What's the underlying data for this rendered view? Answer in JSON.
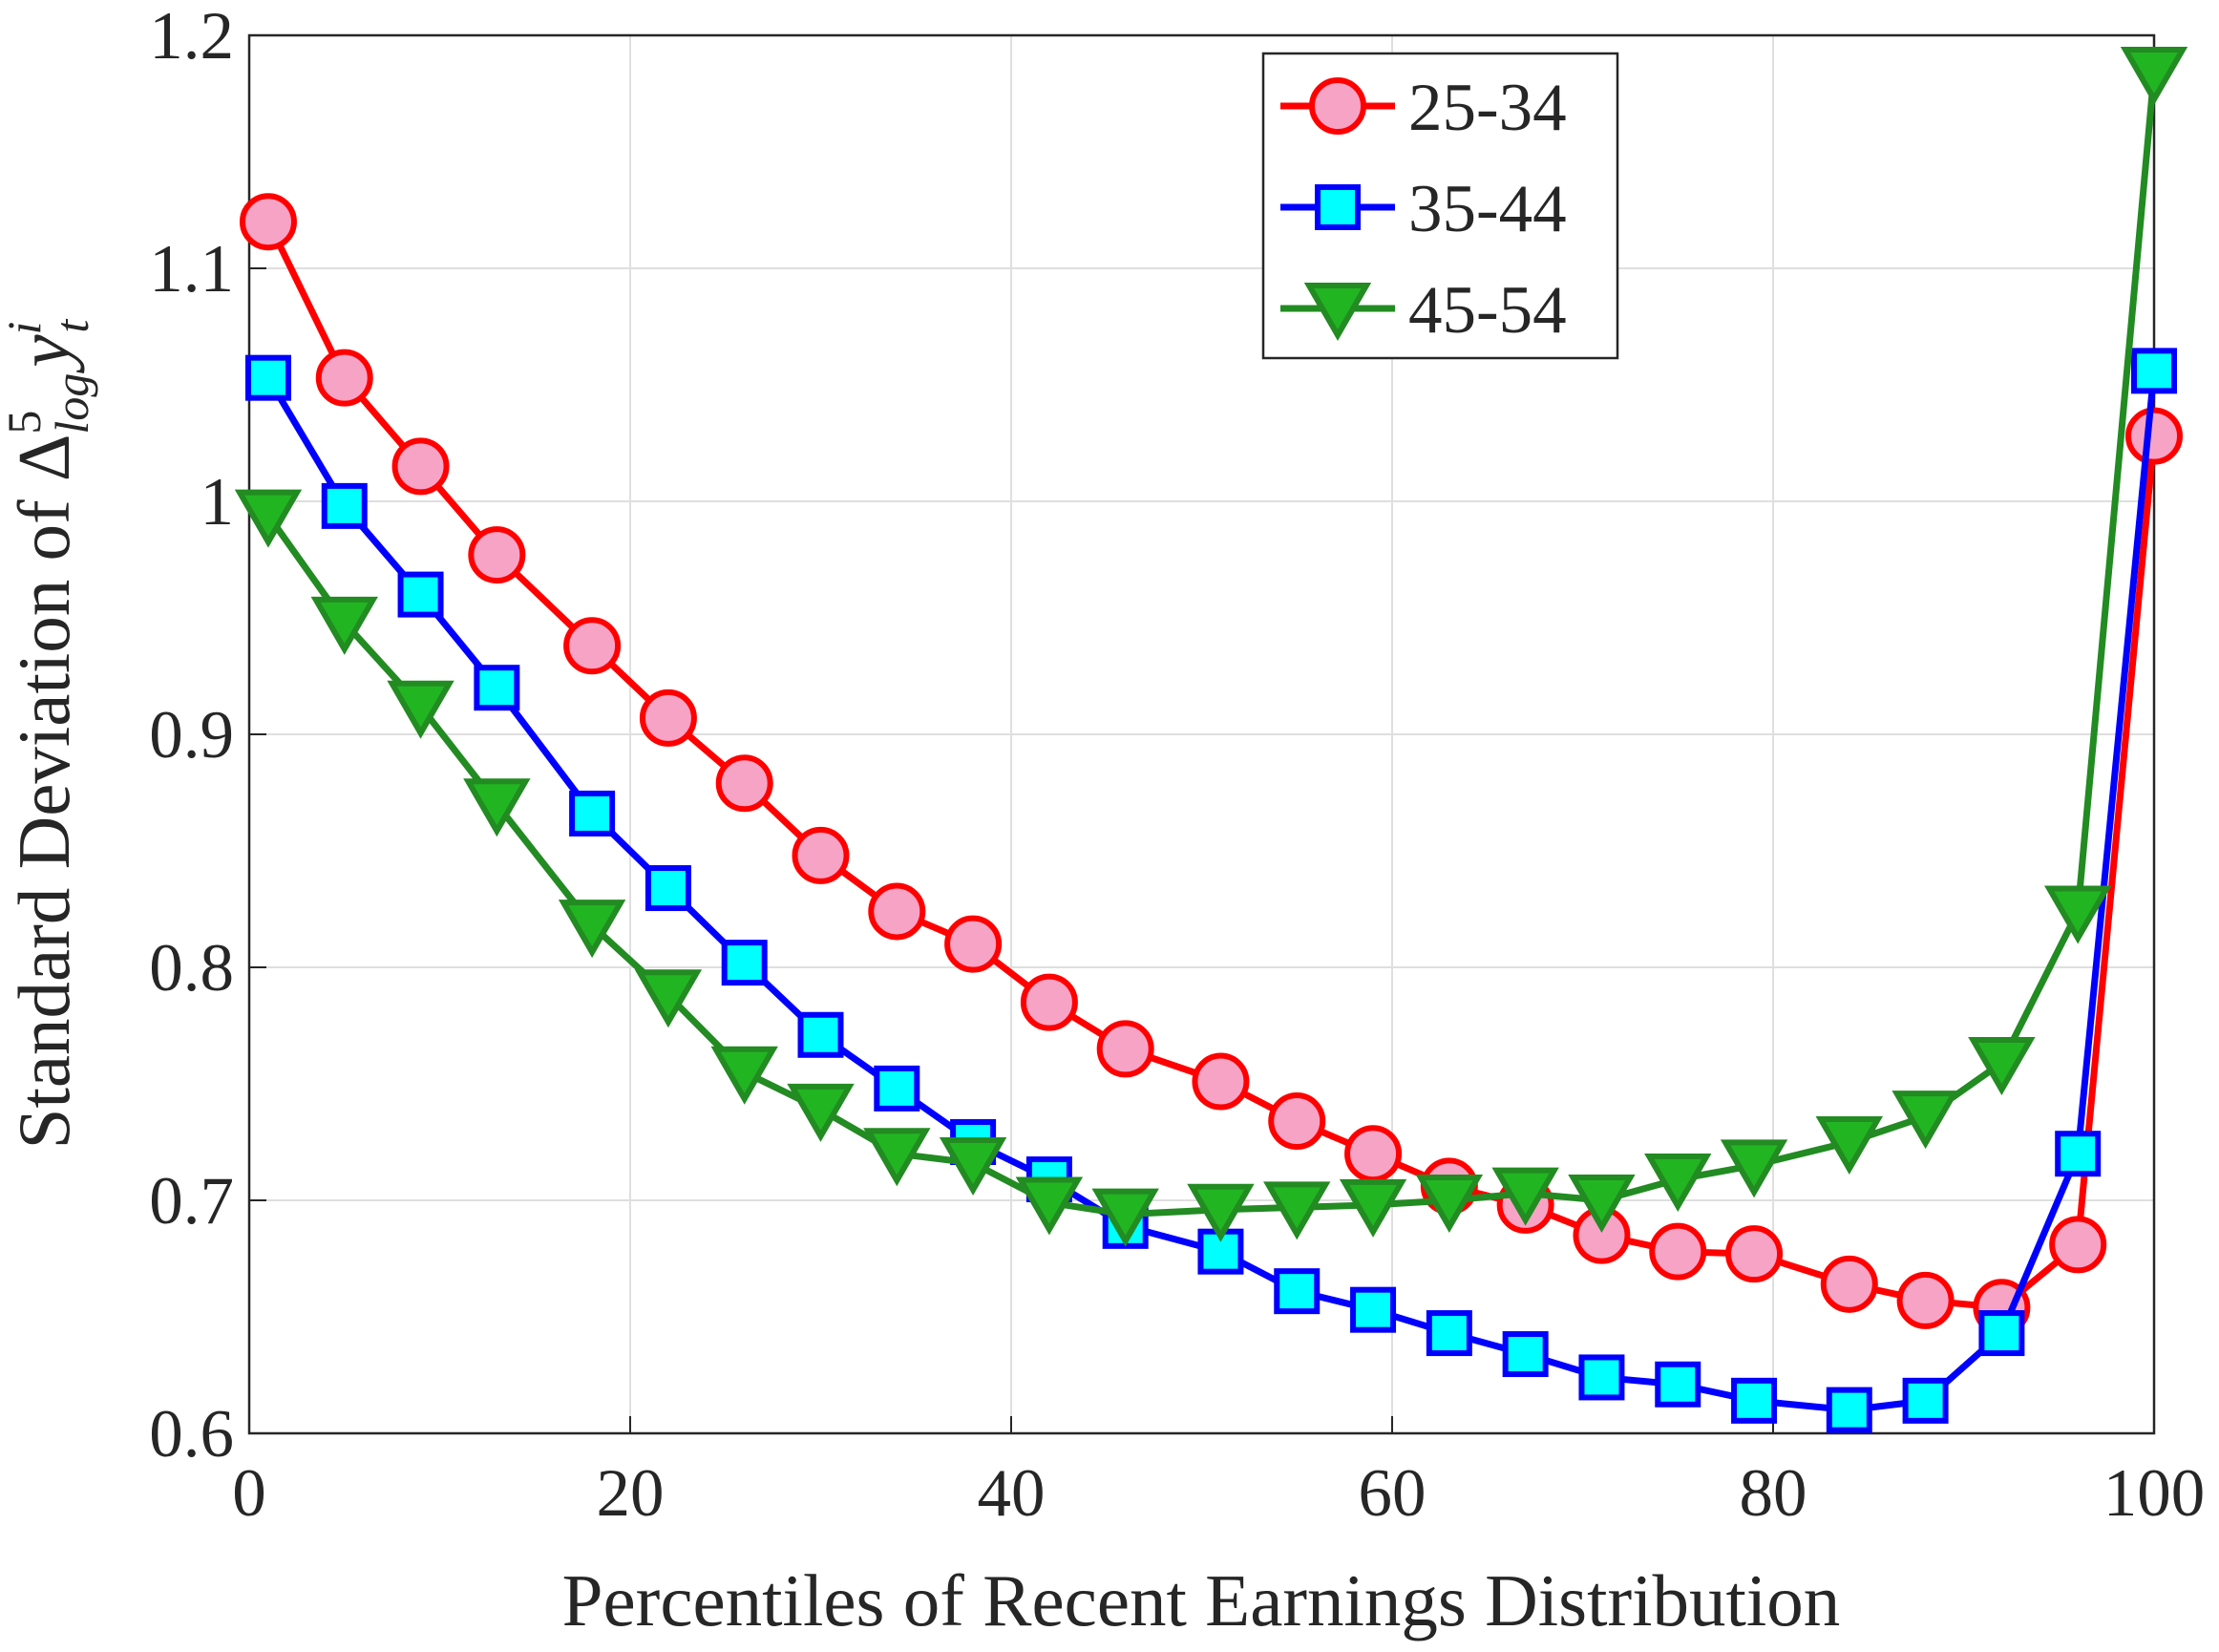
{
  "chart_data": {
    "type": "line",
    "x_label": "Percentiles of Recent Earnings Distribution",
    "y_label": {
      "text": "Standard Deviation of ",
      "symbol": "Δ",
      "symbol_sup": "5",
      "symbol_sub": "log",
      "variable": "y",
      "variable_sup": "i",
      "variable_sub": "t"
    },
    "x": [
      1,
      5,
      9,
      13,
      18,
      22,
      26,
      30,
      34,
      38,
      42,
      46,
      51,
      55,
      59,
      63,
      67,
      71,
      75,
      79,
      84,
      88,
      92,
      96,
      100
    ],
    "series": [
      {
        "name": "25-34",
        "color": "#ff0000",
        "marker": "circle",
        "marker_fill": "#f7a3c6",
        "values": [
          1.12,
          1.053,
          1.015,
          0.977,
          0.938,
          0.907,
          0.879,
          0.848,
          0.824,
          0.81,
          0.785,
          0.765,
          0.751,
          0.734,
          0.72,
          0.706,
          0.698,
          0.685,
          0.678,
          0.677,
          0.664,
          0.657,
          0.654,
          0.681,
          1.028
        ]
      },
      {
        "name": "35-44",
        "color": "#0000ff",
        "marker": "square",
        "marker_fill": "#00ffff",
        "values": [
          1.053,
          0.998,
          0.96,
          0.92,
          0.866,
          0.834,
          0.802,
          0.771,
          0.748,
          0.725,
          0.709,
          0.689,
          0.678,
          0.661,
          0.653,
          0.643,
          0.634,
          0.624,
          0.621,
          0.614,
          0.61,
          0.614,
          0.643,
          0.72,
          1.056
        ]
      },
      {
        "name": "45-54",
        "color": "#228b22",
        "marker": "triangle-down",
        "marker_fill": "#22b522",
        "values": [
          0.994,
          0.948,
          0.912,
          0.87,
          0.818,
          0.788,
          0.755,
          0.739,
          0.72,
          0.716,
          0.699,
          0.694,
          0.696,
          0.697,
          0.698,
          0.7,
          0.703,
          0.7,
          0.709,
          0.715,
          0.725,
          0.736,
          0.759,
          0.824,
          1.184
        ]
      }
    ],
    "xlim": [
      0,
      100
    ],
    "xticks": [
      0,
      20,
      40,
      60,
      80,
      100
    ],
    "ylim": [
      0.6,
      1.2
    ],
    "yticks": [
      0.6,
      0.7,
      0.8,
      0.9,
      1,
      1.1,
      1.2
    ],
    "grid": true,
    "legend": "top-right"
  }
}
